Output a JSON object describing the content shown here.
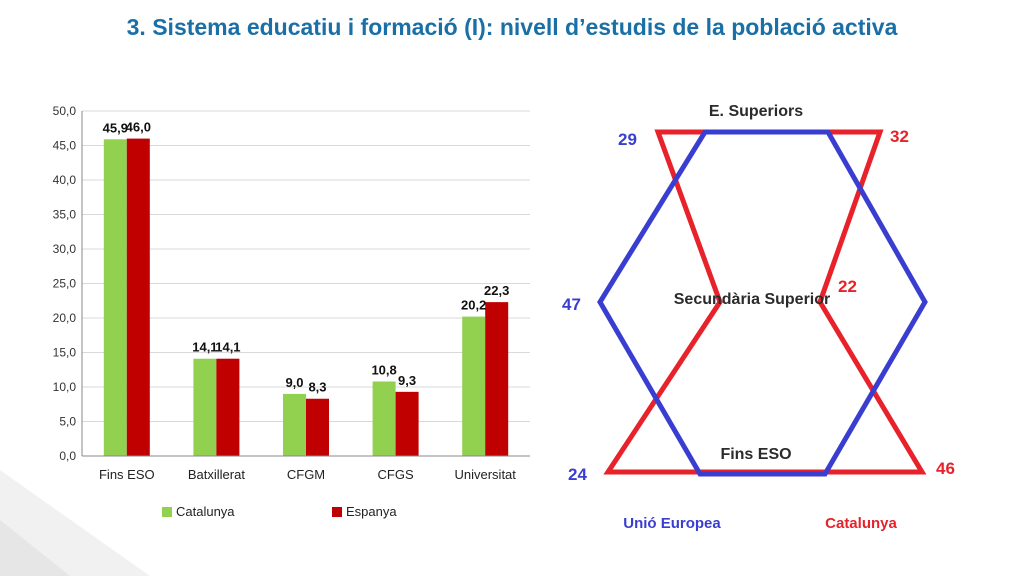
{
  "slide": {
    "title": "3. Sistema educatiu i formació (I): nivell d’estudis de la població activa"
  },
  "colors": {
    "catalunya": "#92d050",
    "espanya": "#c00000",
    "title": "#1a6fa6",
    "eu_blue": "#3a3ed0",
    "cat_red": "#e8222a"
  },
  "chart_data": [
    {
      "type": "bar",
      "categories": [
        "Fins ESO",
        "Batxillerat",
        "CFGM",
        "CFGS",
        "Universitat"
      ],
      "series": [
        {
          "name": "Catalunya",
          "values": [
            45.9,
            14.1,
            9.0,
            10.8,
            20.2
          ],
          "labels": [
            "45,9",
            "14,1",
            "9,0",
            "10,8",
            "20,2"
          ]
        },
        {
          "name": "Espanya",
          "values": [
            46.0,
            14.1,
            8.3,
            9.3,
            22.3
          ],
          "labels": [
            "46,0",
            "14,1",
            "8,3",
            "9,3",
            "22,3"
          ]
        }
      ],
      "ylim": [
        0,
        50
      ],
      "yticks": [
        "0,0",
        "5,0",
        "10,0",
        "15,0",
        "20,0",
        "25,0",
        "30,0",
        "35,0",
        "40,0",
        "45,0",
        "50,0"
      ],
      "grid": true,
      "legend_position": "bottom"
    },
    {
      "type": "radar",
      "axes": [
        "E. Superiors",
        "Secundària Superior",
        "Fins ESO"
      ],
      "series": [
        {
          "name": "Unió Europea",
          "values": [
            29,
            47,
            24
          ]
        },
        {
          "name": "Catalunya",
          "values": [
            32,
            22,
            46
          ]
        }
      ],
      "labels": {
        "eu_top": "29",
        "eu_mid": "47",
        "eu_bottom": "24",
        "cat_top": "32",
        "cat_mid": "22",
        "cat_bottom": "46"
      },
      "legend": {
        "eu": "Unió Europea",
        "cat": "Catalunya"
      }
    }
  ]
}
